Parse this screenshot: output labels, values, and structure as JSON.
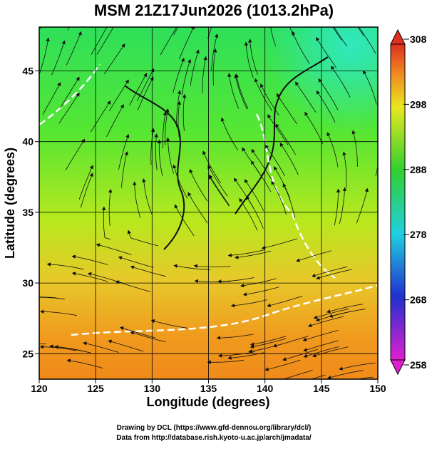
{
  "map": {
    "title": "MSM 21Z17Jun2026 (1013.2hPa)",
    "xlabel": "Longitude (degrees)",
    "ylabel": "Latitude  (degrees)",
    "xlim": [
      120,
      150
    ],
    "xticks": [
      120,
      125,
      130,
      135,
      140,
      145,
      150
    ],
    "ylim": [
      23.2,
      48.1
    ],
    "yticks": [
      25,
      30,
      35,
      40,
      45
    ],
    "colorbar": {
      "lim": [
        258,
        308
      ],
      "ticks": [
        258,
        268,
        278,
        288,
        298,
        308
      ]
    },
    "credits": [
      "Drawing by DCL (https://www.gfd-dennou.org/library/dcl/)",
      "Data from http://database.rish.kyoto-u.ac.jp/arch/jmadata/"
    ]
  }
}
